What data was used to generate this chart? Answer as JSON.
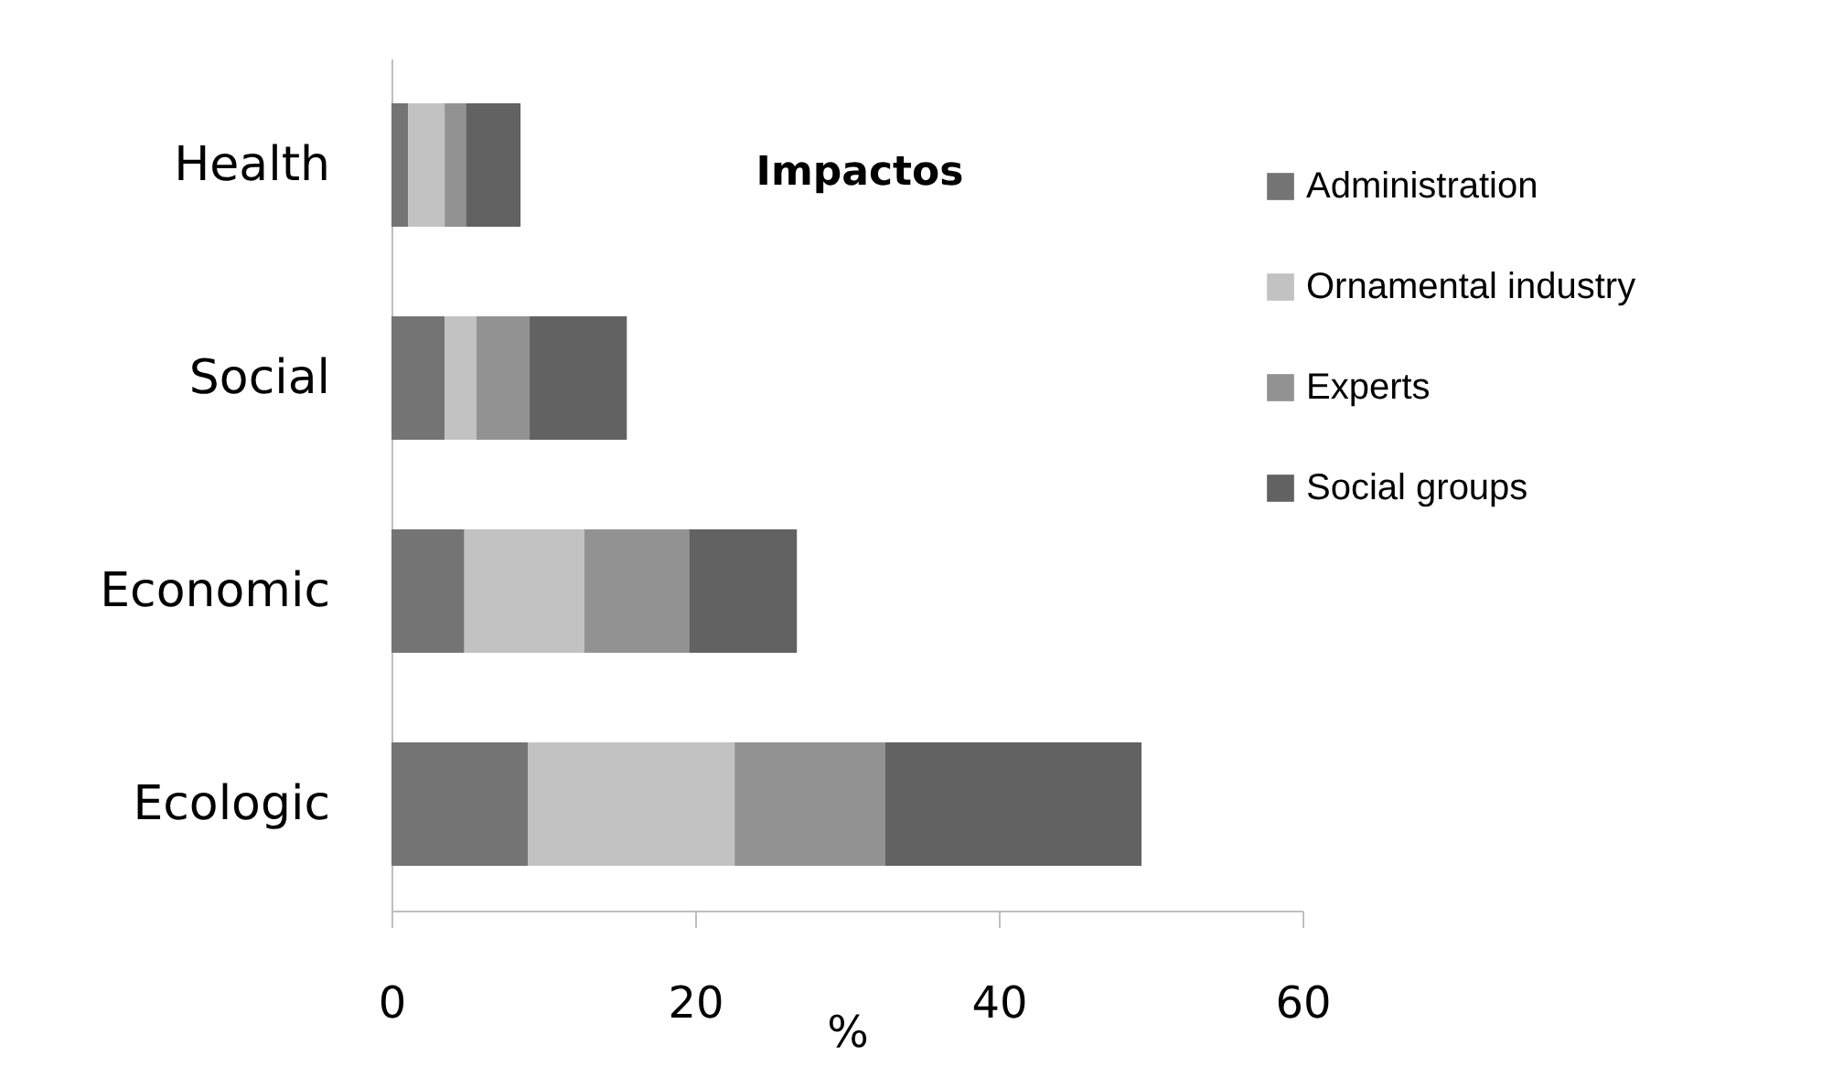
{
  "chart_data": {
    "type": "bar",
    "orientation": "horizontal",
    "stacked": true,
    "title": "Impactos",
    "xlabel": "%",
    "categories": [
      "Health",
      "Social",
      "Economic",
      "Ecologic"
    ],
    "series": [
      {
        "name": "Administration",
        "color": "#747474",
        "values": [
          1.1,
          3.5,
          4.8,
          9.0
        ]
      },
      {
        "name": "Ornamental industry",
        "color": "#c2c2c2",
        "values": [
          2.4,
          2.1,
          7.9,
          13.6
        ]
      },
      {
        "name": "Experts",
        "color": "#929292",
        "values": [
          1.4,
          3.5,
          6.9,
          9.9
        ]
      },
      {
        "name": "Social groups",
        "color": "#626262",
        "values": [
          3.6,
          6.4,
          7.1,
          16.9
        ]
      }
    ],
    "xlim": [
      0,
      60
    ],
    "xticks": [
      0,
      20,
      40,
      60
    ],
    "grid": false,
    "legend": "right"
  }
}
